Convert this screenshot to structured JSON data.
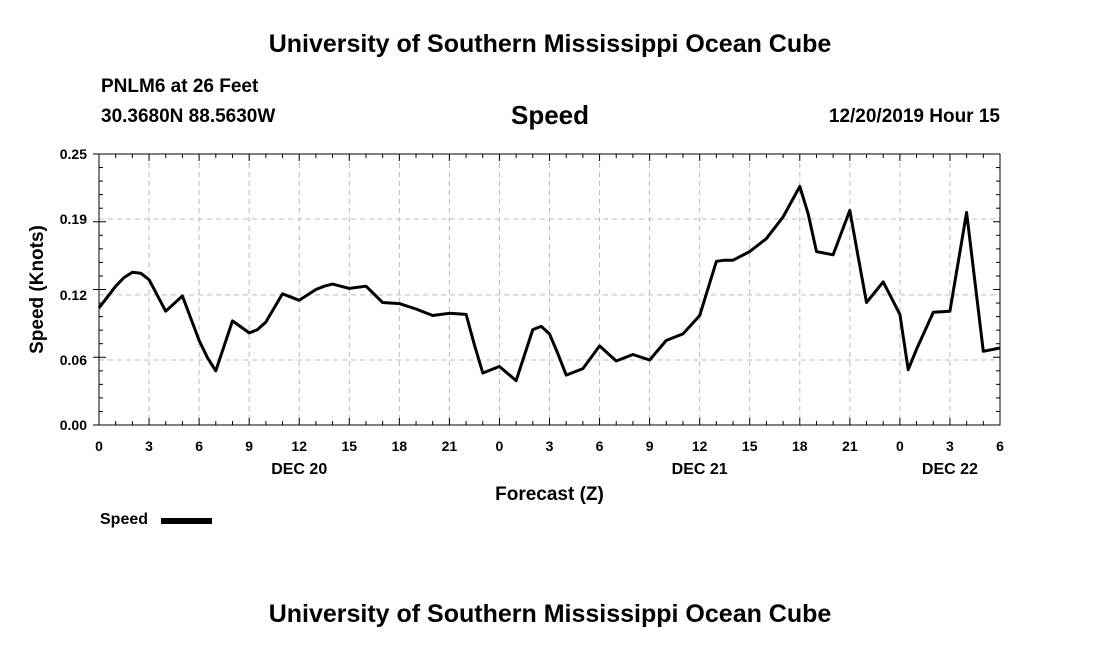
{
  "header": {
    "title": "University of Southern Mississippi Ocean Cube",
    "station": "PNLM6 at 26 Feet",
    "coords": "30.3680N 88.5630W",
    "variable": "Speed",
    "datetime": "12/20/2019 Hour 15"
  },
  "footer": {
    "title": "University of Southern Mississippi Ocean Cube"
  },
  "chart_data": {
    "type": "line",
    "title": "Speed",
    "xlabel": "Forecast (Z)",
    "ylabel": "Speed (Knots)",
    "ylim": [
      0.0,
      0.25
    ],
    "xlim": [
      0,
      54
    ],
    "grid": true,
    "yticks": [
      0.0,
      0.06,
      0.12,
      0.19,
      0.25
    ],
    "ytick_labels": [
      "0.00",
      "0.06",
      "0.12",
      "0.19",
      "0.25"
    ],
    "xticks": [
      0,
      3,
      6,
      9,
      12,
      15,
      18,
      21,
      24,
      27,
      30,
      33,
      36,
      39,
      42,
      45,
      48,
      51,
      54
    ],
    "xtick_labels": [
      "0",
      "3",
      "6",
      "9",
      "12",
      "15",
      "18",
      "21",
      "0",
      "3",
      "6",
      "9",
      "12",
      "15",
      "18",
      "21",
      "0",
      "3",
      "6"
    ],
    "day_labels": [
      {
        "x": 12,
        "label": "DEC 20"
      },
      {
        "x": 36,
        "label": "DEC 21"
      },
      {
        "x": 51,
        "label": "DEC 22"
      }
    ],
    "legend": {
      "position": "bottom-left",
      "entries": [
        "Speed"
      ]
    },
    "series": [
      {
        "name": "Speed",
        "x": [
          0,
          1,
          1.5,
          2,
          2.5,
          3,
          4,
          5,
          6,
          6.5,
          7,
          8,
          9,
          9.5,
          10,
          11,
          12,
          13,
          13.5,
          14,
          15,
          16,
          17,
          18,
          19,
          20,
          21,
          22,
          22.5,
          23,
          24,
          25,
          26,
          26.5,
          27,
          27.5,
          28,
          29,
          30,
          31,
          32,
          33,
          34,
          35,
          36,
          37,
          37.5,
          38,
          39,
          40,
          41,
          42,
          42.5,
          43,
          44,
          45,
          45.5,
          46,
          47,
          48,
          48.5,
          49,
          50,
          51,
          52,
          53,
          54
        ],
        "values": [
          0.108,
          0.128,
          0.136,
          0.141,
          0.14,
          0.134,
          0.105,
          0.119,
          0.078,
          0.062,
          0.05,
          0.096,
          0.085,
          0.088,
          0.095,
          0.121,
          0.115,
          0.125,
          0.128,
          0.13,
          0.126,
          0.128,
          0.113,
          0.112,
          0.107,
          0.101,
          0.103,
          0.102,
          0.074,
          0.048,
          0.054,
          0.041,
          0.088,
          0.091,
          0.084,
          0.066,
          0.046,
          0.052,
          0.073,
          0.059,
          0.065,
          0.06,
          0.078,
          0.084,
          0.101,
          0.151,
          0.152,
          0.152,
          0.16,
          0.172,
          0.192,
          0.22,
          0.195,
          0.16,
          0.157,
          0.198,
          0.155,
          0.113,
          0.132,
          0.102,
          0.051,
          0.07,
          0.104,
          0.105,
          0.196,
          0.068,
          0.071
        ]
      }
    ]
  }
}
